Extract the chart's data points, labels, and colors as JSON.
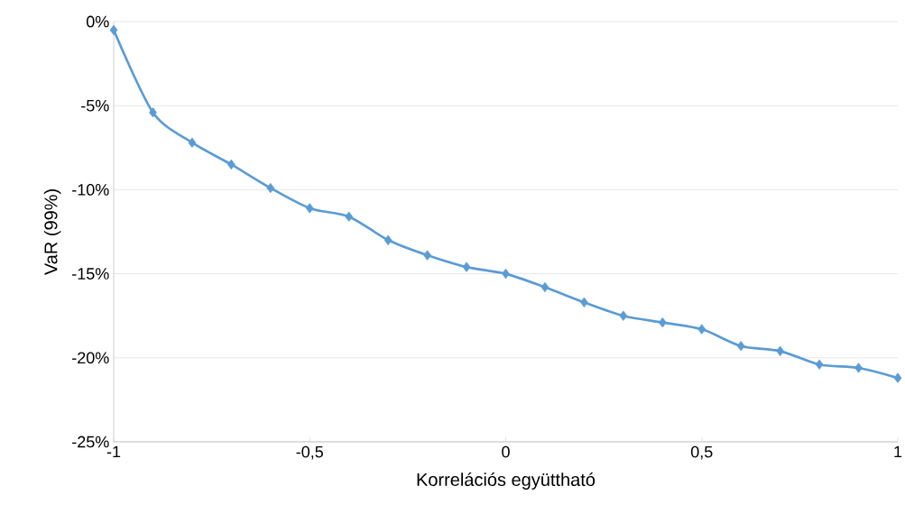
{
  "chart_data": {
    "type": "line",
    "xlabel": "Korrelációs együttható",
    "ylabel": "VaR (99%)",
    "x": [
      -1,
      -0.9,
      -0.8,
      -0.7,
      -0.6,
      -0.5,
      -0.4,
      -0.3,
      -0.2,
      -0.1,
      0,
      0.1,
      0.2,
      0.3,
      0.4,
      0.5,
      0.6,
      0.7,
      0.8,
      0.9,
      1
    ],
    "values": [
      -0.5,
      -5.4,
      -7.2,
      -8.5,
      -9.9,
      -11.1,
      -11.6,
      -13.0,
      -13.9,
      -14.6,
      -15.0,
      -15.8,
      -16.7,
      -17.5,
      -17.9,
      -18.3,
      -19.3,
      -19.6,
      -20.4,
      -20.6,
      -21.2
    ],
    "color": "#5b9bd5",
    "marker": "diamond",
    "line_style": "solid",
    "grid": "y",
    "xlim": [
      -1,
      1
    ],
    "ylim": [
      -25,
      0
    ],
    "xticks": [
      -1,
      {
        "value": -0.5,
        "label": "-0,5"
      },
      0,
      {
        "value": 0.5,
        "label": "0,5"
      },
      1
    ],
    "yticks": [
      {
        "value": 0,
        "label": "0%"
      },
      {
        "value": -5,
        "label": "-5%"
      },
      {
        "value": -10,
        "label": "-10%"
      },
      {
        "value": -15,
        "label": "-15%"
      },
      {
        "value": -20,
        "label": "-20%"
      },
      {
        "value": -25,
        "label": "-25%"
      }
    ]
  }
}
